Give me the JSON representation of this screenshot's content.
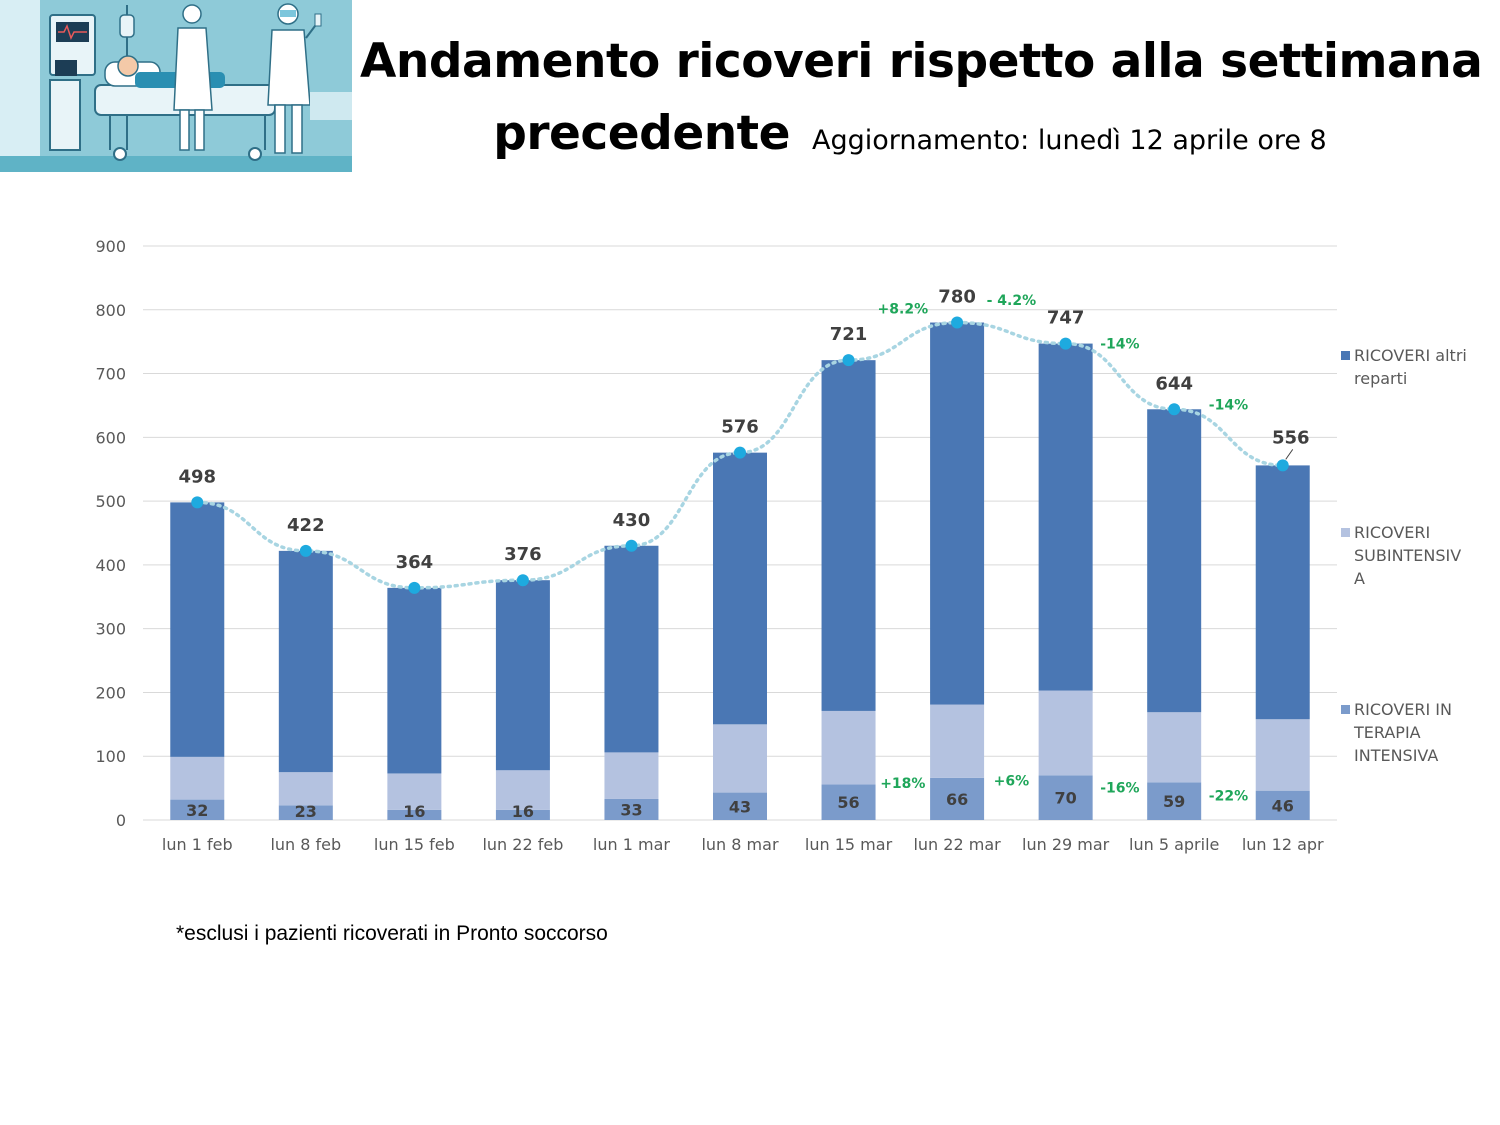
{
  "header": {
    "title_line1": "Andamento ricoveri rispetto alla settimana",
    "title_line2": "precedente",
    "update_note": "Aggiornamento: lunedì 12  aprile ore 8"
  },
  "footnote": "*esclusi i pazienti ricoverati in Pronto soccorso",
  "colors": {
    "altri_reparti": "#4a77b4",
    "subintensiva": "#b4c2e0",
    "terapia_intensiva": "#7b9bcb",
    "trend_line": "#a8d5e2",
    "trend_point": "#1eaadf",
    "pct_text": "#1fa65a",
    "grid": "#d9d9d9"
  },
  "chart_data": {
    "type": "bar",
    "stacked": true,
    "categories": [
      "lun 1 feb",
      "lun 8 feb",
      "lun 15 feb",
      "lun 22 feb",
      "lun 1 mar",
      "lun 8 mar",
      "lun 15 mar",
      "lun 22 mar",
      "lun 29 mar",
      "lun 5 aprile",
      "lun 12 apr"
    ],
    "ylim": [
      0,
      900
    ],
    "yticks": [
      0,
      100,
      200,
      300,
      400,
      500,
      600,
      700,
      800,
      900
    ],
    "gridlines": true,
    "legend_position": "right",
    "series": [
      {
        "key": "terapia_intensiva",
        "name": "RICOVERI IN TERAPIA INTENSIVA",
        "values": [
          32,
          23,
          16,
          16,
          33,
          43,
          56,
          66,
          70,
          59,
          46
        ]
      },
      {
        "key": "subintensiva",
        "name": "RICOVERI SUBINTENSIVA",
        "values": [
          67,
          52,
          57,
          62,
          73,
          107,
          115,
          115,
          133,
          110,
          112
        ]
      },
      {
        "key": "altri_reparti",
        "name": "RICOVERI altri reparti",
        "values": [
          399,
          347,
          291,
          298,
          324,
          426,
          550,
          599,
          544,
          475,
          398
        ]
      }
    ],
    "legend": [
      {
        "key": "altri_reparti",
        "lines": [
          "RICOVERI altri",
          "reparti"
        ]
      },
      {
        "key": "subintensiva",
        "lines": [
          "RICOVERI",
          "SUBINTENSIV",
          "A"
        ]
      },
      {
        "key": "terapia_intensiva",
        "lines": [
          "RICOVERI IN",
          "TERAPIA",
          "INTENSIVA"
        ]
      }
    ],
    "totals": [
      498,
      422,
      364,
      376,
      430,
      576,
      721,
      780,
      747,
      644,
      556
    ],
    "total_labels": [
      "498",
      "422",
      "364",
      "376",
      "430",
      "576",
      "721",
      "780",
      "747",
      "644",
      "556"
    ],
    "ti_labels": [
      "32",
      "23",
      "16",
      "16",
      "33",
      "43",
      "56",
      "66",
      "70",
      "59",
      "46"
    ],
    "total_change_labels": [
      {
        "after_index": 6,
        "text": "+8.2%"
      },
      {
        "after_index": 7,
        "text": "- 4.2%"
      },
      {
        "after_index": 8,
        "text": "-14%"
      },
      {
        "after_index": 9,
        "text": "-14%"
      }
    ],
    "ti_change_labels": [
      {
        "after_index": 6,
        "text": "+18%"
      },
      {
        "after_index": 7,
        "text": "+6%"
      },
      {
        "after_index": 8,
        "text": "-16%"
      },
      {
        "after_index": 9,
        "text": "-22%"
      }
    ]
  }
}
